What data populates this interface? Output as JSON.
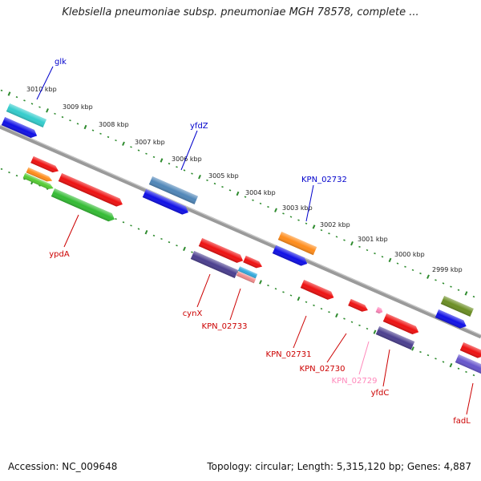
{
  "title": "Klebsiella pneumoniae subsp. pneumoniae MGH 78578, complete ...",
  "footer": {
    "accession": "Accession: NC_009648",
    "summary": "Topology: circular; Length: 5,315,120 bp; Genes: 4,887"
  },
  "colors": {
    "backbone": "#8a8a8a",
    "tick": "#2e8b2e",
    "forward_label": "#0000cc",
    "reverse_label": "#cc0000",
    "pink_label": "#ff88bb"
  },
  "kbp_labels": [
    "3010 kbp",
    "3009 kbp",
    "3008 kbp",
    "3007 kbp",
    "3006 kbp",
    "3005 kbp",
    "3004 kbp",
    "3003 kbp",
    "3002 kbp",
    "3001 kbp",
    "3000 kbp",
    "2999 kbp"
  ],
  "gene_labels": [
    {
      "text": "glk",
      "strand": "forward"
    },
    {
      "text": "yfdZ",
      "strand": "forward"
    },
    {
      "text": "KPN_02732",
      "strand": "forward"
    },
    {
      "text": "ypdA",
      "strand": "reverse"
    },
    {
      "text": "cynX",
      "strand": "reverse"
    },
    {
      "text": "KPN_02733",
      "strand": "reverse"
    },
    {
      "text": "KPN_02731",
      "strand": "reverse"
    },
    {
      "text": "KPN_02730",
      "strand": "reverse"
    },
    {
      "text": "KPN_02729",
      "strand": "pink"
    },
    {
      "text": "yfdC",
      "strand": "reverse"
    },
    {
      "text": "fadL",
      "strand": "reverse"
    }
  ]
}
